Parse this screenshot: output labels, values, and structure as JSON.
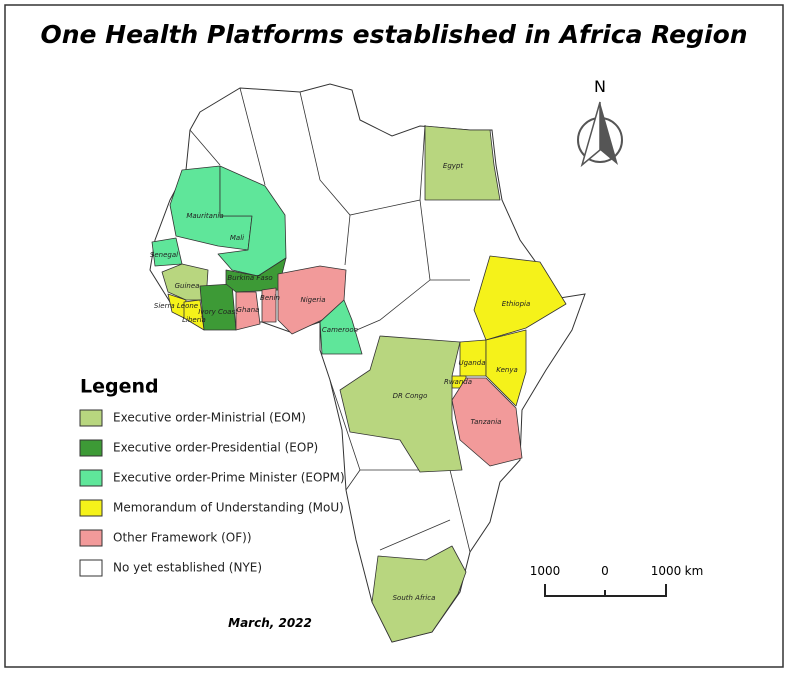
{
  "title": "One Health Platforms established in Africa Region",
  "north": "N",
  "legend": {
    "title": "Legend",
    "items": [
      {
        "code": "EOM",
        "label": "Executive order-Ministrial (EOM)",
        "color": "#b8d67f"
      },
      {
        "code": "EOP",
        "label": "Executive order-Presidential (EOP)",
        "color": "#3d9a36"
      },
      {
        "code": "EOPM",
        "label": "Executive order-Prime Minister (EOPM)",
        "color": "#5fe69a"
      },
      {
        "code": "MoU",
        "label": "Memorandum of Understanding (MoU)",
        "color": "#f5f21a"
      },
      {
        "code": "OF",
        "label": "Other Framework (OF))",
        "color": "#f29a9a"
      },
      {
        "code": "NYE",
        "label": "No yet established (NYE)",
        "color": "#ffffff"
      }
    ]
  },
  "countries": [
    {
      "label": "Egypt",
      "status": "EOM"
    },
    {
      "label": "Mauritania",
      "status": "EOPM"
    },
    {
      "label": "Mali",
      "status": "EOPM"
    },
    {
      "label": "Senegal",
      "status": "EOPM"
    },
    {
      "label": "Guinea",
      "status": "EOM"
    },
    {
      "label": "Sierra Leone",
      "status": "MoU"
    },
    {
      "label": "Liberia",
      "status": "MoU"
    },
    {
      "label": "Ivory Coast",
      "status": "EOP"
    },
    {
      "label": "Ghana",
      "status": "OF"
    },
    {
      "label": "Burkina Faso",
      "status": "EOP"
    },
    {
      "label": "Benin",
      "status": "OF"
    },
    {
      "label": "Nigeria",
      "status": "OF"
    },
    {
      "label": "Cameroon",
      "status": "EOPM"
    },
    {
      "label": "Ethiopia",
      "status": "MoU"
    },
    {
      "label": "Uganda",
      "status": "MoU"
    },
    {
      "label": "Kenya",
      "status": "MoU"
    },
    {
      "label": "Rwanda",
      "status": "MoU"
    },
    {
      "label": "DR Congo",
      "status": "EOM"
    },
    {
      "label": "Tanzania",
      "status": "OF"
    },
    {
      "label": "South Africa",
      "status": "EOM"
    }
  ],
  "scale": {
    "labels": [
      "1000",
      "0",
      "1000"
    ],
    "unit": "km"
  },
  "date": "March, 2022"
}
